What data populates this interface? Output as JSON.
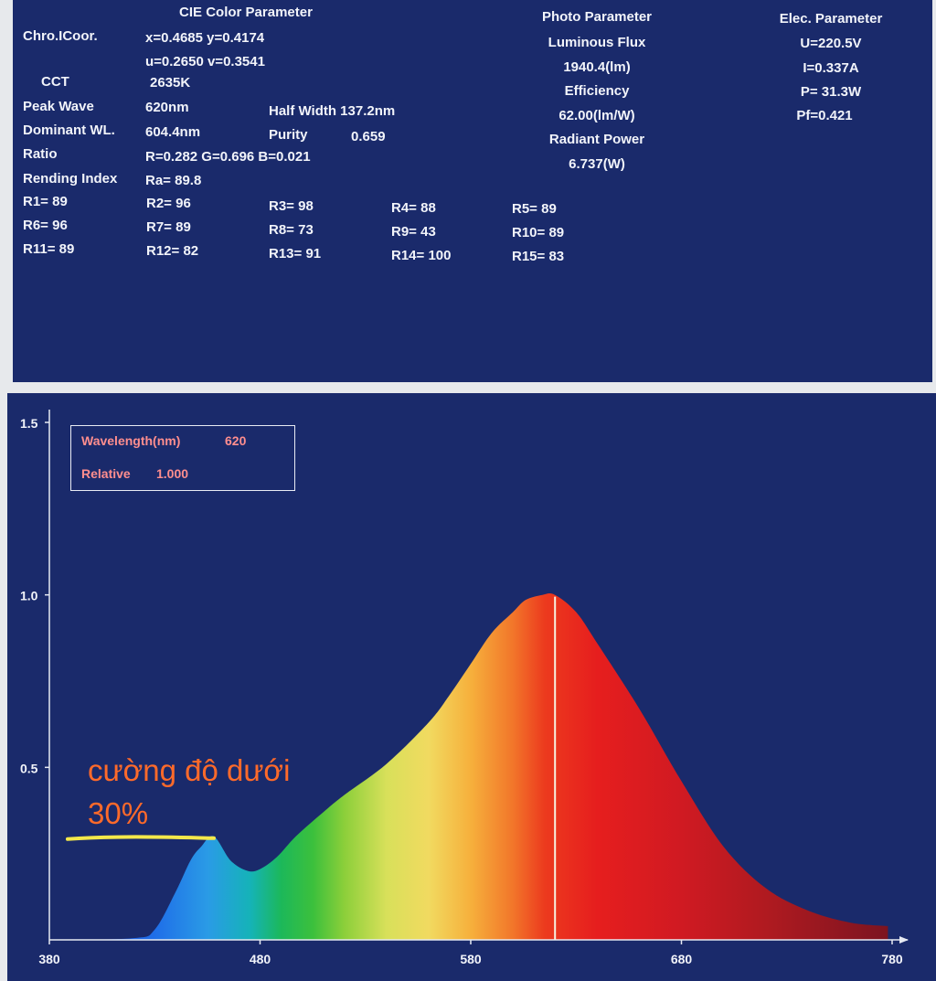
{
  "cie": {
    "title": "CIE Color Parameter",
    "chro_label": "Chro.ICoor.",
    "xy": "x=0.4685 y=0.4174",
    "uv": "u=0.2650 v=0.3541",
    "cct_label": "CCT",
    "cct_value": "2635K",
    "peak_label": "Peak Wave",
    "peak_value": "620nm",
    "halfwidth": "Half Width 137.2nm",
    "dominant_label": "Dominant WL.",
    "dominant_value": "604.4nm",
    "purity_label": "Purity",
    "purity_value": "0.659",
    "ratio_label": "Ratio",
    "ratio_value": "R=0.282  G=0.696  B=0.021",
    "rending_label": "Rending Index",
    "rending_value": "Ra= 89.8",
    "r_values": [
      "R1=  89",
      "R2=  96",
      "R3=  98",
      "R4=  88",
      "R5=  89",
      "R6=  96",
      "R7=  89",
      "R8=  73",
      "R9=  43",
      "R10=  89",
      "R11=  89",
      "R12=  82",
      "R13=  91",
      "R14=  100",
      "R15=  83"
    ]
  },
  "photo": {
    "title": "Photo Parameter",
    "flux_label": "Luminous Flux",
    "flux_value": "1940.4(lm)",
    "eff_label": "Efficiency",
    "eff_value": "62.00(lm/W)",
    "rad_label": "Radiant Power",
    "rad_value": "6.737(W)"
  },
  "elec": {
    "title": "Elec. Parameter",
    "u": "U=220.5V",
    "i": "I=0.337A",
    "p": "P= 31.3W",
    "pf": "Pf=0.421"
  },
  "readout": {
    "wavelength_label": "Wavelength(nm)",
    "wavelength_value": "620",
    "relative_label": "Relative",
    "relative_value": "1.000"
  },
  "annotation": {
    "line1": "cường độ dưới",
    "line2": "30%"
  },
  "colors": {
    "panel": "#1a2a6b",
    "text": "#f2f4fa",
    "readout_text": "#ff8e8e",
    "annotation": "#ff6a2a",
    "highlight": "#f4e84a"
  },
  "chart_data": {
    "type": "area",
    "title": "",
    "xlabel": "",
    "ylabel": "",
    "xlim": [
      380,
      780
    ],
    "ylim": [
      0,
      1.5
    ],
    "x_ticks": [
      "380",
      "480",
      "580",
      "680",
      "780"
    ],
    "y_ticks": [
      "0.5",
      "1.0",
      "1.5"
    ],
    "cursor_x": 620,
    "grid": false,
    "series": [
      {
        "x": [
          380,
          420,
          430,
          440,
          447,
          452,
          458,
          466,
          474,
          480,
          488,
          497,
          510,
          520,
          540,
          560,
          570,
          580,
          590,
          600,
          606,
          614,
          620,
          630,
          640,
          660,
          680,
          700,
          720,
          740,
          760,
          778
        ],
        "values": [
          0,
          0.005,
          0.03,
          0.14,
          0.23,
          0.27,
          0.3,
          0.23,
          0.2,
          0.205,
          0.24,
          0.3,
          0.37,
          0.42,
          0.51,
          0.63,
          0.71,
          0.8,
          0.89,
          0.95,
          0.985,
          1.0,
          1.0,
          0.95,
          0.86,
          0.67,
          0.46,
          0.27,
          0.15,
          0.085,
          0.05,
          0.04
        ]
      }
    ]
  }
}
